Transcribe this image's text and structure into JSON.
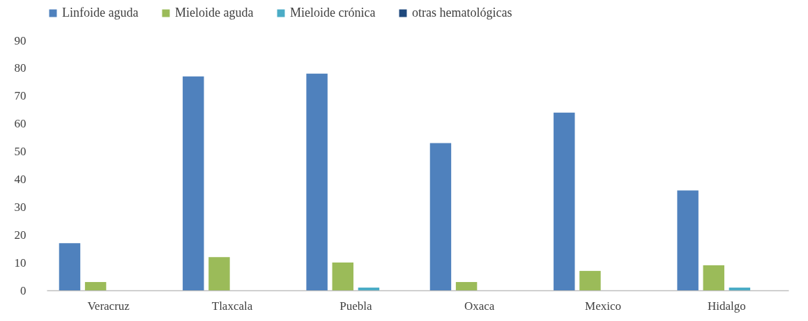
{
  "chart_data": {
    "type": "bar",
    "categories": [
      "Veracruz",
      "Tlaxcala",
      "Puebla",
      "Oxaca",
      "Mexico",
      "Hidalgo"
    ],
    "series": [
      {
        "name": "Linfoide aguda",
        "color": "#4f81bd",
        "values": [
          17,
          77,
          78,
          53,
          64,
          36
        ]
      },
      {
        "name": "Mieloide aguda",
        "color": "#9bbb59",
        "values": [
          3,
          12,
          10,
          3,
          7,
          9
        ]
      },
      {
        "name": "Mieloide crónica",
        "color": "#4bacc6",
        "values": [
          0,
          0,
          1,
          0,
          0,
          1
        ]
      },
      {
        "name": "otras hematológicas",
        "color": "#1f497d",
        "values": [
          0,
          0,
          0,
          0,
          0,
          0
        ]
      }
    ],
    "ylim": [
      0,
      90
    ],
    "yticks": [
      0,
      10,
      20,
      30,
      40,
      50,
      60,
      70,
      80,
      90
    ],
    "grid": false,
    "legend": "top"
  }
}
